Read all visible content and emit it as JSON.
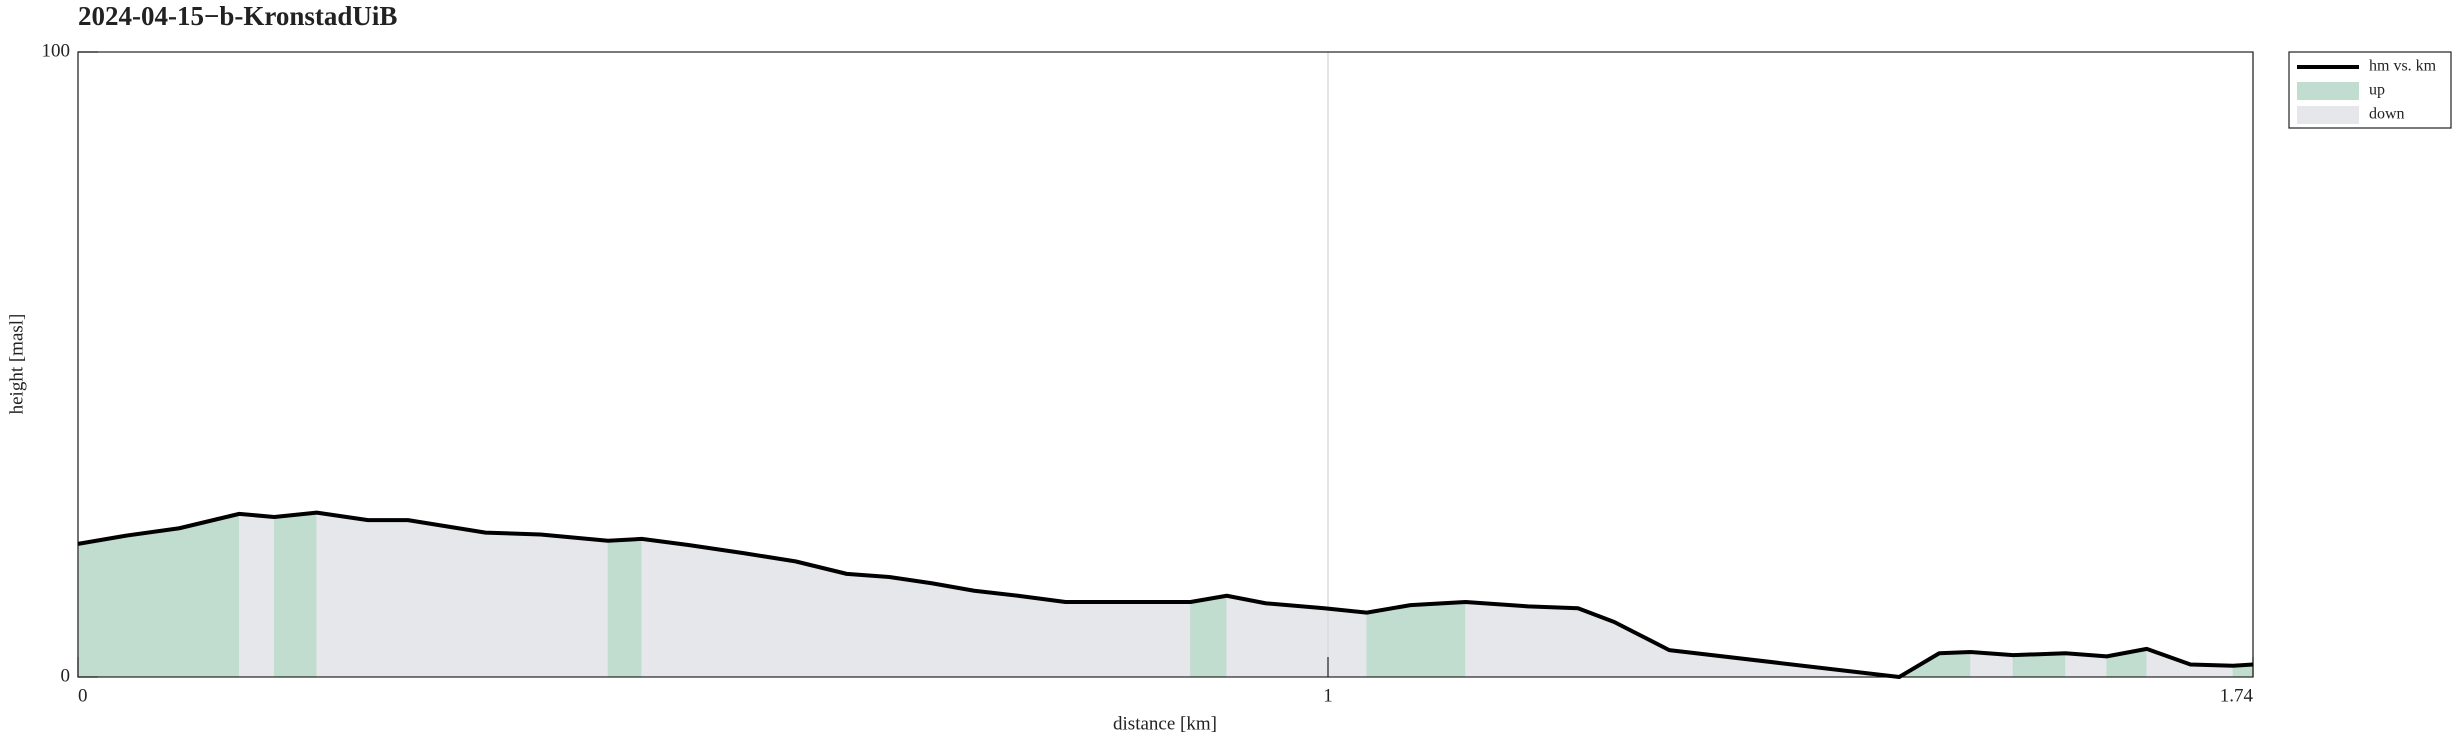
{
  "chart_data": {
    "type": "area-line",
    "title": "2024-04-15−b-KronstadUiB",
    "x_label": "distance [km]",
    "y_label": "height [masl]",
    "xlim": [
      0,
      1.74
    ],
    "ylim": [
      0,
      100
    ],
    "xticks": [
      0,
      1,
      1.74
    ],
    "yticks": [
      0,
      100
    ],
    "grid": true,
    "legend": "outside-upper-right",
    "x": [
      0,
      0.038,
      0.081,
      0.129,
      0.157,
      0.191,
      0.232,
      0.264,
      0.295,
      0.326,
      0.37,
      0.424,
      0.451,
      0.489,
      0.533,
      0.574,
      0.615,
      0.649,
      0.683,
      0.717,
      0.752,
      0.79,
      0.89,
      0.919,
      0.95,
      0.997,
      1.031,
      1.066,
      1.11,
      1.16,
      1.2,
      1.229,
      1.273,
      1.457,
      1.489,
      1.514,
      1.548,
      1.59,
      1.623,
      1.655,
      1.69,
      1.724,
      1.74
    ],
    "series": [
      {
        "name": "hm vs. km",
        "color": "#000000",
        "values": [
          21.3,
          22.6,
          23.8,
          26.1,
          25.6,
          26.3,
          25.1,
          25.1,
          24.1,
          23.1,
          22.8,
          21.8,
          22.1,
          21.1,
          19.8,
          18.5,
          16.5,
          16.0,
          15.0,
          13.8,
          13.0,
          12.0,
          12.0,
          13.0,
          11.8,
          11.0,
          10.3,
          11.5,
          12.0,
          11.3,
          11.0,
          8.8,
          4.3,
          0,
          3.8,
          4.0,
          3.5,
          3.8,
          3.3,
          4.5,
          2.0,
          1.8,
          2.0
        ]
      }
    ],
    "areas": [
      {
        "name": "up",
        "color": "#c0ddcf"
      },
      {
        "name": "down",
        "color": "#e6e7eb"
      }
    ]
  }
}
